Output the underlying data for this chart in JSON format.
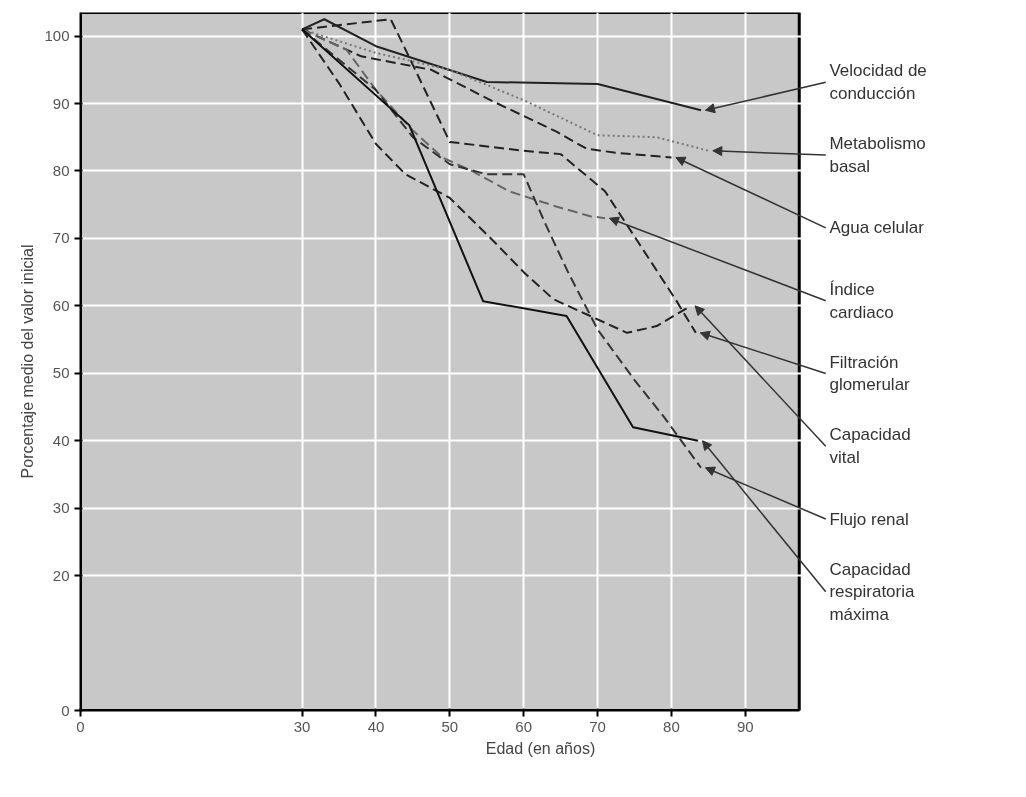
{
  "chart_data": {
    "type": "line",
    "xlabel": "Edad (en años)",
    "ylabel": "Porcentaje medio del valor inicial",
    "xlim": [
      0,
      97.3
    ],
    "ylim": [
      0,
      103.5
    ],
    "xticks": [
      0,
      30,
      40,
      50,
      60,
      70,
      80,
      90
    ],
    "yticks": [
      0,
      20,
      30,
      40,
      50,
      60,
      70,
      80,
      90,
      100
    ],
    "grid": true,
    "marker": "none",
    "series": [
      {
        "name": "Velocidad de conducción",
        "color": "#222222",
        "line_style": "solid",
        "x": [
          30,
          33,
          40,
          55,
          70,
          84
        ],
        "values": [
          101,
          102.5,
          98.5,
          93.2,
          92.9,
          89
        ]
      },
      {
        "name": "Metabolismo basal",
        "color": "#777777",
        "line_style": "dotted",
        "x": [
          30,
          40,
          50,
          60,
          70,
          78,
          85
        ],
        "values": [
          101,
          97.5,
          95,
          90.5,
          85.3,
          85,
          83
        ]
      },
      {
        "name": "Agua celular",
        "color": "#222222",
        "line_style": "dashed",
        "x": [
          30,
          38,
          47.5,
          55.5,
          64.5,
          68.5,
          72.5,
          80
        ],
        "values": [
          101,
          97,
          95,
          90.5,
          85.8,
          83.3,
          82.7,
          82
        ]
      },
      {
        "name": "Índice cardiaco",
        "color": "#666666",
        "line_style": "dashed",
        "x": [
          30,
          36,
          40,
          45,
          49,
          53,
          58,
          64.5,
          69,
          71
        ],
        "values": [
          101,
          98,
          92,
          86,
          82,
          80,
          77,
          74.7,
          73.3,
          73
        ]
      },
      {
        "name": "Filtración glomerular",
        "color": "#222222",
        "line_style": "dashed",
        "x": [
          30,
          42,
          44,
          50,
          60,
          65,
          71,
          80.7,
          83.3
        ],
        "values": [
          101,
          102.5,
          98,
          84.3,
          83,
          82.5,
          77,
          60.7,
          56
        ]
      },
      {
        "name": "Capacidad vital",
        "color": "#222222",
        "line_style": "dashed",
        "x": [
          30,
          35,
          40,
          44,
          50,
          56,
          60,
          64,
          68,
          74,
          78,
          82.6
        ],
        "values": [
          101,
          93,
          84,
          79.5,
          76,
          69.5,
          65,
          61,
          59,
          56,
          57,
          60
        ]
      },
      {
        "name": "Flujo renal",
        "color": "#333333",
        "line_style": "dashed",
        "x": [
          30,
          40,
          45,
          50,
          55,
          60,
          63,
          66,
          70,
          75,
          79,
          84
        ],
        "values": [
          101,
          92,
          85,
          81,
          79.5,
          79.5,
          72,
          65,
          56.5,
          49,
          43.5,
          36
        ]
      },
      {
        "name": "Capacidad respiratoria máxima",
        "color": "#111111",
        "line_style": "solid",
        "x": [
          30,
          44.5,
          54.5,
          65.8,
          74.8,
          83.6
        ],
        "values": [
          101,
          86.8,
          60.7,
          58.5,
          42,
          40
        ]
      }
    ]
  }
}
